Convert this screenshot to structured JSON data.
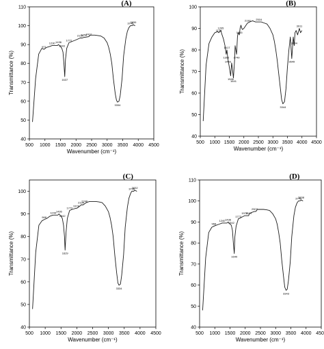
{
  "chart_data": [
    {
      "type": "line",
      "title": "(A)",
      "xlabel": "Wavenumber (cm⁻¹)",
      "ylabel": "Transmittance (%)",
      "xlim": [
        500,
        4500
      ],
      "ylim": [
        40,
        110
      ],
      "xticks": [
        500,
        1000,
        1500,
        2000,
        2500,
        3000,
        3500,
        4000,
        4500
      ],
      "yticks": [
        40,
        50,
        60,
        70,
        80,
        90,
        100,
        110
      ],
      "grid": false,
      "series": [
        {
          "x": [
            600,
            700,
            800,
            900,
            971,
            1050,
            1150,
            1230,
            1300,
            1400,
            1436,
            1500,
            1543,
            1580,
            1610,
            1637,
            1660,
            1700,
            1772,
            1850,
            2000,
            2134,
            2200,
            2250,
            2412,
            2450,
            2500,
            2600,
            2700,
            2800,
            2900,
            3000,
            3050,
            3100,
            3150,
            3200,
            3260,
            3300,
            3334,
            3380,
            3420,
            3480,
            3530,
            3600,
            3650,
            3700,
            3749,
            3800,
            3839,
            3900
          ],
          "y": [
            49,
            72,
            85,
            88,
            87.5,
            88.5,
            89,
            89.5,
            89.5,
            89.5,
            90,
            89,
            88,
            86,
            80,
            73,
            82,
            88,
            91,
            91.5,
            92.5,
            93.5,
            93.5,
            93.8,
            94.2,
            95,
            95,
            95,
            94.8,
            94.5,
            93.5,
            91,
            88.5,
            85,
            80,
            72,
            64,
            60.5,
            59.5,
            60,
            63,
            72,
            84,
            93,
            97,
            99,
            100,
            100,
            100.5,
            100
          ]
        }
      ],
      "annotations": [
        {
          "x": 971,
          "y": 87.5,
          "text": "971"
        },
        {
          "x": 1230,
          "y": 89.5,
          "text": "1230"
        },
        {
          "x": 1436,
          "y": 90,
          "text": "1436"
        },
        {
          "x": 1543,
          "y": 88,
          "text": "1543"
        },
        {
          "x": 1637,
          "y": 73,
          "text": "1637"
        },
        {
          "x": 1772,
          "y": 91,
          "text": "1772"
        },
        {
          "x": 2134,
          "y": 93.5,
          "text": "2134"
        },
        {
          "x": 2250,
          "y": 93.8,
          "text": "2250"
        },
        {
          "x": 2412,
          "y": 94.2,
          "text": "2412"
        },
        {
          "x": 3334,
          "y": 59.5,
          "text": "3334"
        },
        {
          "x": 3749,
          "y": 100,
          "text": "3749"
        },
        {
          "x": 3839,
          "y": 100.5,
          "text": "3839"
        }
      ]
    },
    {
      "type": "line",
      "title": "(B)",
      "xlabel": "Wavenumber (cm⁻¹)",
      "ylabel": "Transmittance (%)",
      "xlim": [
        500,
        4500
      ],
      "ylim": [
        40,
        100
      ],
      "xticks": [
        500,
        1000,
        1500,
        2000,
        2500,
        3000,
        3500,
        4000,
        4500
      ],
      "yticks": [
        40,
        50,
        60,
        70,
        80,
        90,
        100
      ],
      "grid": false,
      "series": [
        {
          "x": [
            600,
            700,
            800,
            900,
            1000,
            1100,
            1136,
            1205,
            1250,
            1300,
            1350,
            1392,
            1417,
            1448,
            1500,
            1546,
            1580,
            1600,
            1641,
            1680,
            1700,
            1749,
            1780,
            1800,
            1845,
            1870,
            1900,
            1930,
            1950,
            2000,
            2050,
            2100,
            2130,
            2200,
            2300,
            2400,
            2516,
            2600,
            2700,
            2800,
            2900,
            3000,
            3050,
            3100,
            3150,
            3200,
            3250,
            3300,
            3344,
            3400,
            3450,
            3500,
            3550,
            3600,
            3649,
            3700,
            3734,
            3760,
            3800,
            3850,
            3911,
            3950,
            4000
          ],
          "y": [
            47,
            73,
            83,
            86,
            88,
            88.5,
            88,
            89,
            87,
            85,
            82,
            78,
            80,
            76,
            72,
            68,
            74,
            72,
            67,
            75,
            82,
            78,
            86,
            88,
            87,
            90,
            91.5,
            90,
            89.5,
            90,
            91,
            92,
            92.5,
            93,
            93.5,
            93,
            93,
            93,
            92.5,
            92,
            90,
            87,
            84,
            80,
            75,
            69,
            63,
            57,
            55,
            56,
            62,
            72,
            80,
            86,
            76,
            86,
            82,
            88,
            89,
            87,
            90,
            88,
            89
          ]
        }
      ],
      "annotations": [
        {
          "x": 1136,
          "y": 88,
          "text": "1136"
        },
        {
          "x": 1205,
          "y": 89,
          "text": "1205"
        },
        {
          "x": 1392,
          "y": 78,
          "text": "1392"
        },
        {
          "x": 1417,
          "y": 80,
          "text": "1417"
        },
        {
          "x": 1448,
          "y": 76,
          "text": "1448"
        },
        {
          "x": 1546,
          "y": 68,
          "text": "1546"
        },
        {
          "x": 1641,
          "y": 67,
          "text": "1641"
        },
        {
          "x": 1749,
          "y": 78,
          "text": "1749"
        },
        {
          "x": 1845,
          "y": 87,
          "text": "1845"
        },
        {
          "x": 2130,
          "y": 92.5,
          "text": "2130"
        },
        {
          "x": 2516,
          "y": 93,
          "text": "2516"
        },
        {
          "x": 3344,
          "y": 55,
          "text": "3344"
        },
        {
          "x": 3649,
          "y": 76,
          "text": "3649"
        },
        {
          "x": 3734,
          "y": 82,
          "text": "3734"
        },
        {
          "x": 3911,
          "y": 90,
          "text": "3911"
        }
      ]
    },
    {
      "type": "line",
      "title": "(C)",
      "xlabel": "Wavenumber (cm⁻¹)",
      "ylabel": "Transmittance (%)",
      "xlim": [
        500,
        4500
      ],
      "ylim": [
        40,
        105
      ],
      "xticks": [
        500,
        1000,
        1500,
        2000,
        2500,
        3000,
        3500,
        4000,
        4500
      ],
      "yticks": [
        40,
        50,
        60,
        70,
        80,
        90,
        100
      ],
      "grid": false,
      "series": [
        {
          "x": [
            600,
            700,
            800,
            900,
            968,
            1050,
            1150,
            1249,
            1300,
            1400,
            1436,
            1500,
            1542,
            1580,
            1610,
            1629,
            1660,
            1700,
            1772,
            1850,
            1978,
            2000,
            2100,
            2134,
            2200,
            2246,
            2300,
            2400,
            2500,
            2600,
            2700,
            2800,
            2900,
            3000,
            3050,
            3100,
            3150,
            3200,
            3260,
            3300,
            3334,
            3380,
            3420,
            3480,
            3530,
            3600,
            3650,
            3700,
            3736,
            3800,
            3832,
            3900
          ],
          "y": [
            48,
            73,
            85,
            87,
            87.5,
            88,
            89,
            89.5,
            89.5,
            89.5,
            90,
            89,
            88,
            85,
            80,
            74,
            82,
            88,
            91.5,
            92,
            92.5,
            92.5,
            93.5,
            94,
            94,
            94.5,
            95,
            95.5,
            95.5,
            95.5,
            95.3,
            95,
            93.5,
            91,
            88.5,
            85,
            80,
            72,
            64,
            59.5,
            58.5,
            59,
            63,
            72,
            84,
            93,
            97,
            99,
            100,
            100,
            100.5,
            100
          ]
        }
      ],
      "annotations": [
        {
          "x": 968,
          "y": 87.5,
          "text": "968"
        },
        {
          "x": 1249,
          "y": 89.5,
          "text": "1249"
        },
        {
          "x": 1436,
          "y": 90,
          "text": "1436"
        },
        {
          "x": 1542,
          "y": 88,
          "text": "1542"
        },
        {
          "x": 1629,
          "y": 74,
          "text": "1629"
        },
        {
          "x": 1772,
          "y": 91.5,
          "text": "1772"
        },
        {
          "x": 1978,
          "y": 92.5,
          "text": "1978"
        },
        {
          "x": 2134,
          "y": 94,
          "text": "2134"
        },
        {
          "x": 2246,
          "y": 94.5,
          "text": "2246"
        },
        {
          "x": 3334,
          "y": 58.5,
          "text": "3334"
        },
        {
          "x": 3736,
          "y": 100,
          "text": "3736"
        },
        {
          "x": 3832,
          "y": 100.5,
          "text": "3832"
        }
      ]
    },
    {
      "type": "line",
      "title": "(D)",
      "xlabel": "Wavenumber (cm⁻¹)",
      "ylabel": "Transmittance (%)",
      "xlim": [
        500,
        4500
      ],
      "ylim": [
        40,
        110
      ],
      "xticks": [
        500,
        1000,
        1500,
        2000,
        2500,
        3000,
        3500,
        4000,
        4500
      ],
      "yticks": [
        40,
        50,
        60,
        70,
        80,
        90,
        100,
        110
      ],
      "grid": false,
      "series": [
        {
          "x": [
            600,
            700,
            800,
            900,
            968,
            1050,
            1150,
            1240,
            1300,
            1400,
            1436,
            1500,
            1542,
            1580,
            1610,
            1640,
            1660,
            1700,
            1773,
            1850,
            1978,
            2000,
            2113,
            2134,
            2200,
            2307,
            2350,
            2400,
            2500,
            2600,
            2700,
            2800,
            2900,
            3000,
            3050,
            3100,
            3150,
            3200,
            3260,
            3300,
            3343,
            3380,
            3420,
            3480,
            3530,
            3600,
            3650,
            3700,
            3749,
            3800,
            3838,
            3900
          ],
          "y": [
            48,
            73,
            85,
            87.5,
            88,
            88.5,
            89,
            89.5,
            89.5,
            89.5,
            90,
            89,
            88.5,
            86,
            80,
            75,
            83,
            88,
            91.5,
            92,
            93,
            93,
            93,
            94,
            94.5,
            95,
            95,
            96,
            96,
            96,
            95.8,
            95.5,
            94,
            91.5,
            89,
            85,
            80,
            72,
            64,
            59,
            57.5,
            58,
            62,
            71,
            83,
            93,
            97,
            99,
            100,
            100,
            100.5,
            100
          ]
        }
      ],
      "annotations": [
        {
          "x": 968,
          "y": 88,
          "text": "968"
        },
        {
          "x": 1240,
          "y": 89.5,
          "text": "1240"
        },
        {
          "x": 1436,
          "y": 90,
          "text": "1436"
        },
        {
          "x": 1542,
          "y": 88.5,
          "text": "1542"
        },
        {
          "x": 1640,
          "y": 75,
          "text": "1640"
        },
        {
          "x": 1773,
          "y": 91.5,
          "text": "1773"
        },
        {
          "x": 1978,
          "y": 93,
          "text": "1978"
        },
        {
          "x": 2113,
          "y": 93,
          "text": "2113"
        },
        {
          "x": 2307,
          "y": 95,
          "text": "2307"
        },
        {
          "x": 3343,
          "y": 57.5,
          "text": "3343"
        },
        {
          "x": 3749,
          "y": 100,
          "text": "3749"
        },
        {
          "x": 3838,
          "y": 100.5,
          "text": "3838"
        }
      ]
    }
  ]
}
